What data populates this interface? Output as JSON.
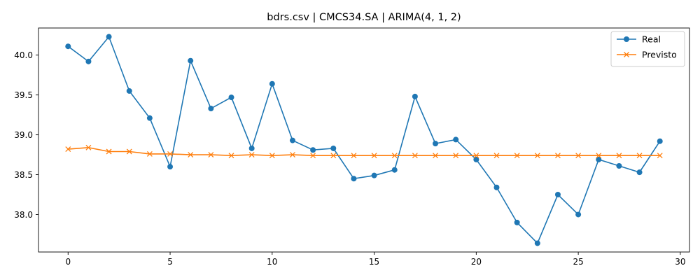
{
  "chart_data": {
    "type": "line",
    "title": "bdrs.csv | CMCS34.SA | ARIMA(4, 1, 2)",
    "xlabel": "",
    "ylabel": "",
    "xlim": [
      -1.45,
      30.45
    ],
    "ylim": [
      37.53,
      40.34
    ],
    "xticks": [
      0,
      5,
      10,
      15,
      20,
      25,
      30
    ],
    "yticks": [
      38.0,
      38.5,
      39.0,
      39.5,
      40.0
    ],
    "ytick_labels": [
      "38.0",
      "38.5",
      "39.0",
      "39.5",
      "40.0"
    ],
    "grid": false,
    "legend_position": "top-right",
    "series": [
      {
        "name": "Real",
        "color": "#1f77b4",
        "marker": "circle",
        "x": [
          0,
          1,
          2,
          3,
          4,
          5,
          6,
          7,
          8,
          9,
          10,
          11,
          12,
          13,
          14,
          15,
          16,
          17,
          18,
          19,
          20,
          21,
          22,
          23,
          24,
          25,
          26,
          27,
          28,
          29
        ],
        "values": [
          40.11,
          39.92,
          40.23,
          39.55,
          39.21,
          38.6,
          39.93,
          39.33,
          39.47,
          38.83,
          39.64,
          38.93,
          38.81,
          38.83,
          38.45,
          38.49,
          38.56,
          39.48,
          38.89,
          38.94,
          38.69,
          38.34,
          37.9,
          37.64,
          38.25,
          38.0,
          38.69,
          38.61,
          38.53,
          38.92
        ]
      },
      {
        "name": "Previsto",
        "color": "#ff7f0e",
        "marker": "x",
        "x": [
          0,
          1,
          2,
          3,
          4,
          5,
          6,
          7,
          8,
          9,
          10,
          11,
          12,
          13,
          14,
          15,
          16,
          17,
          18,
          19,
          20,
          21,
          22,
          23,
          24,
          25,
          26,
          27,
          28,
          29
        ],
        "values": [
          38.82,
          38.84,
          38.79,
          38.79,
          38.76,
          38.76,
          38.75,
          38.75,
          38.74,
          38.75,
          38.74,
          38.75,
          38.74,
          38.74,
          38.74,
          38.74,
          38.74,
          38.74,
          38.74,
          38.74,
          38.74,
          38.74,
          38.74,
          38.74,
          38.74,
          38.74,
          38.74,
          38.74,
          38.74,
          38.74
        ]
      }
    ]
  }
}
